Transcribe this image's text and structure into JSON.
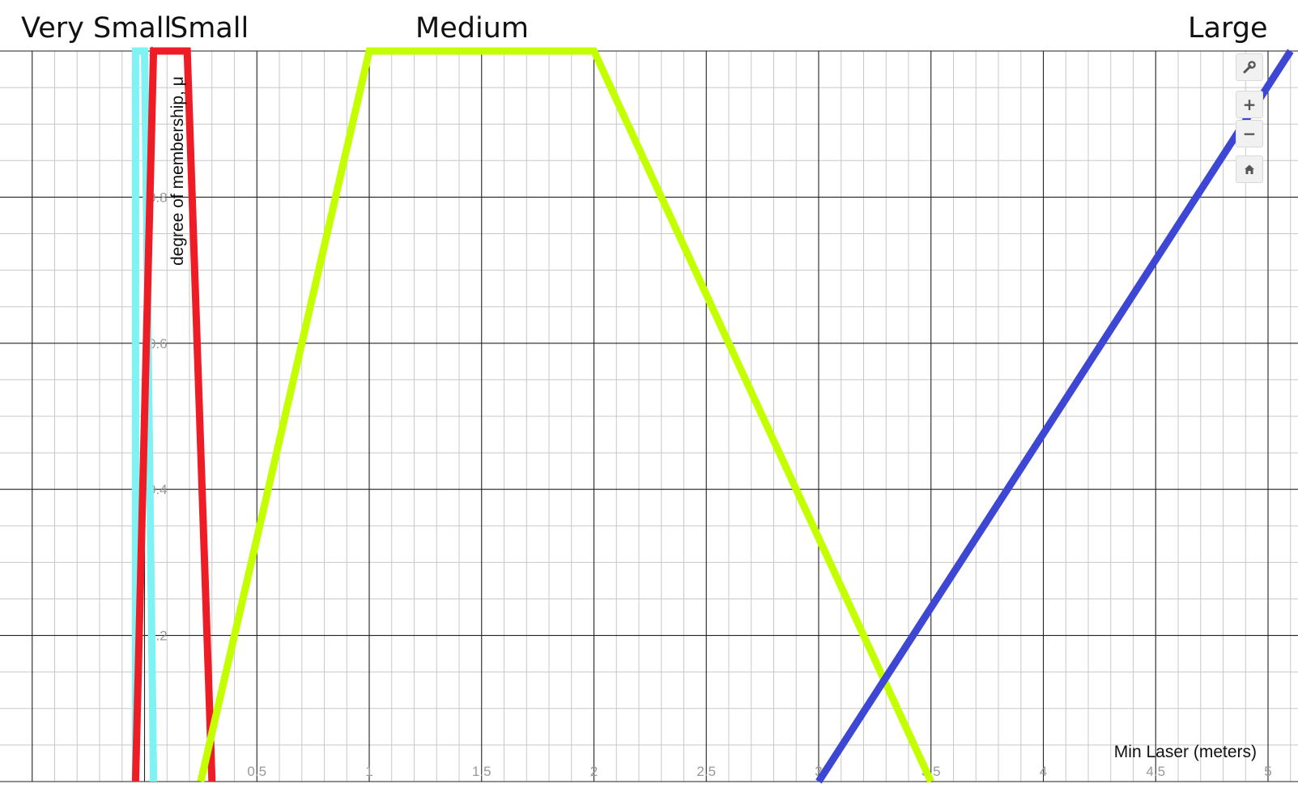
{
  "labels": {
    "very_small": "Very Small",
    "small": "Small",
    "medium": "Medium",
    "large": "Large"
  },
  "toolbar": {
    "settings_icon": "wrench-icon",
    "zoom_in_icon": "plus-icon",
    "zoom_out_icon": "minus-icon",
    "home_icon": "home-icon",
    "zoom_in_label": "+",
    "zoom_out_label": "−"
  },
  "chart_data": {
    "type": "line",
    "title": "",
    "xlabel": "Min Laser (meters)",
    "ylabel": "degree of membership, μ",
    "xlim": [
      -0.5,
      5
    ],
    "ylim": [
      0,
      1
    ],
    "x_ticks": [
      "0.5",
      "1",
      "1.5",
      "2",
      "2.5",
      "3",
      "3.5",
      "4",
      "4.5",
      "5"
    ],
    "y_ticks": [
      "0.2",
      "0.4",
      "0.6",
      "0.8",
      "1"
    ],
    "grid": true,
    "series": [
      {
        "name": "Very Small",
        "color": "#7ff3f3",
        "x": [
          -0.04,
          -0.04,
          0.0,
          0.04
        ],
        "y": [
          0,
          1,
          1,
          0
        ]
      },
      {
        "name": "Small",
        "color": "#ee1c25",
        "x": [
          -0.04,
          0.04,
          0.19,
          0.3
        ],
        "y": [
          0,
          1,
          1,
          0
        ]
      },
      {
        "name": "Medium",
        "color": "#c3ff00",
        "x": [
          0.25,
          1.0,
          2.0,
          3.5
        ],
        "y": [
          0,
          1,
          1,
          0
        ]
      },
      {
        "name": "Large",
        "color": "#3d47d4",
        "x": [
          3.0,
          5.1
        ],
        "y": [
          0,
          1
        ]
      }
    ]
  }
}
